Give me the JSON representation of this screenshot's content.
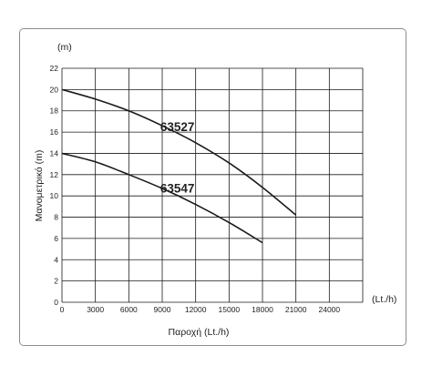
{
  "chart_data": {
    "type": "line",
    "title": "",
    "xlabel": "Παροχή (Lt./h)",
    "ylabel": "Μανομετρικό  (m)",
    "x_unit": "(Lt./h)",
    "y_unit": "(m)",
    "xlim": [
      0,
      27000
    ],
    "ylim": [
      0,
      22
    ],
    "xticks": [
      "0",
      "3000",
      "6000",
      "9000",
      "12000",
      "15000",
      "18000",
      "21000",
      "24000"
    ],
    "yticks": [
      "0",
      "2",
      "4",
      "6",
      "8",
      "10",
      "12",
      "14",
      "16",
      "18",
      "20",
      "22"
    ],
    "grid": true,
    "series": [
      {
        "name": "63527",
        "x": [
          0,
          3000,
          6000,
          9000,
          12000,
          15000,
          18000,
          21000
        ],
        "y": [
          20,
          19.1,
          18,
          16.6,
          15,
          13.1,
          10.8,
          8.2
        ]
      },
      {
        "name": "63547",
        "x": [
          0,
          3000,
          6000,
          9000,
          12000,
          15000,
          18000
        ],
        "y": [
          14,
          13.2,
          12,
          10.7,
          9.2,
          7.5,
          5.6
        ]
      }
    ],
    "colors": {
      "line": "#1a1a1a",
      "grid": "#1a1a1a",
      "frame": "#8c8c8c"
    }
  }
}
